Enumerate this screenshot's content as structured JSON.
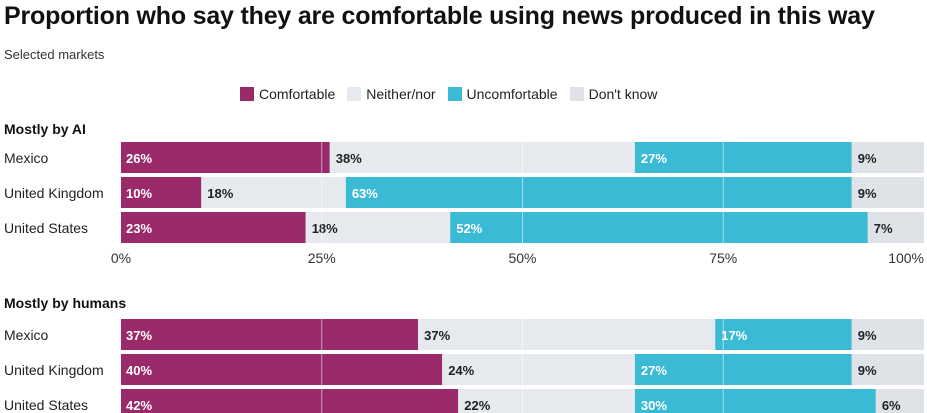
{
  "chart_data": {
    "type": "bar",
    "orientation": "horizontal-stacked",
    "title": "Proportion who say they are comfortable using news produced in this way",
    "subtitle": "Selected markets",
    "legend": [
      {
        "name": "Comfortable",
        "color": "#9b2a6b"
      },
      {
        "name": "Neither/nor",
        "color": "#e6e9ee"
      },
      {
        "name": "Uncomfortable",
        "color": "#3bbad5"
      },
      {
        "name": "Don't know",
        "color": "#dfe3e8"
      }
    ],
    "x_ticks": [
      "0%",
      "25%",
      "50%",
      "75%",
      "100%"
    ],
    "xlim": [
      0,
      100
    ],
    "groups": [
      {
        "label": "Mostly by AI",
        "rows": [
          {
            "country": "Mexico",
            "values": [
              26,
              38,
              27,
              9
            ]
          },
          {
            "country": "United Kingdom",
            "values": [
              10,
              18,
              63,
              9
            ]
          },
          {
            "country": "United States",
            "values": [
              23,
              18,
              52,
              7
            ]
          }
        ]
      },
      {
        "label": "Mostly by humans",
        "rows": [
          {
            "country": "Mexico",
            "values": [
              37,
              37,
              17,
              9
            ]
          },
          {
            "country": "United Kingdom",
            "values": [
              40,
              24,
              27,
              9
            ]
          },
          {
            "country": "United States",
            "values": [
              42,
              22,
              30,
              6
            ]
          }
        ]
      }
    ]
  }
}
